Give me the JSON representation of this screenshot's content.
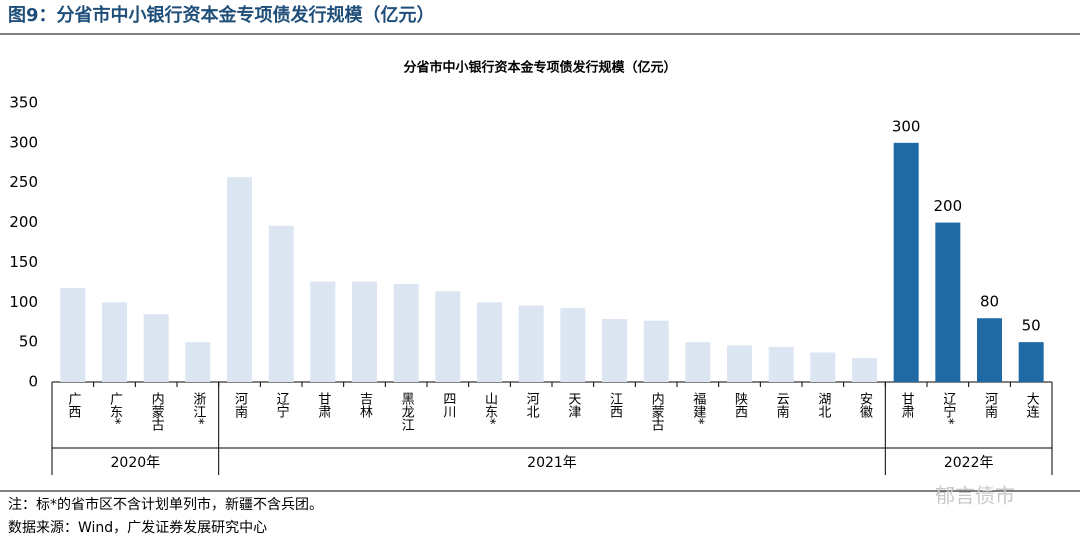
{
  "header": {
    "title": "图9：分省市中小银行资本金专项债发行规模（亿元）"
  },
  "chart_data": {
    "type": "bar",
    "title": "分省市中小银行资本金专项债发行规模（亿元）",
    "ylim": [
      0,
      350
    ],
    "yticks": [
      0,
      50,
      100,
      150,
      200,
      250,
      300,
      350
    ],
    "groups": [
      {
        "name": "2020年",
        "color": "#dce6f2",
        "categories": [
          "广西",
          "广东*",
          "内蒙古",
          "浙江*"
        ],
        "values": [
          118,
          100,
          85,
          50
        ]
      },
      {
        "name": "2021年",
        "color": "#dce6f2",
        "categories": [
          "河南",
          "辽宁",
          "甘肃",
          "吉林",
          "黑龙江",
          "四川",
          "山东*",
          "河北",
          "天津",
          "江西",
          "内蒙古",
          "福建*",
          "陕西",
          "云南",
          "湖北",
          "安徽"
        ],
        "values": [
          257,
          196,
          126,
          126,
          123,
          114,
          100,
          96,
          93,
          79,
          77,
          50,
          46,
          44,
          37,
          30
        ]
      },
      {
        "name": "2022年",
        "color": "#1f6aa5",
        "data_labels": true,
        "categories": [
          "甘肃",
          "辽宁*",
          "河南",
          "大连"
        ],
        "values": [
          300,
          200,
          80,
          50
        ]
      }
    ]
  },
  "footer": {
    "note": "注：标*的省市区不含计划单列市，新疆不含兵团。",
    "source": "数据来源：Wind，广发证券发展研究中心",
    "watermark": "郁言债市"
  }
}
